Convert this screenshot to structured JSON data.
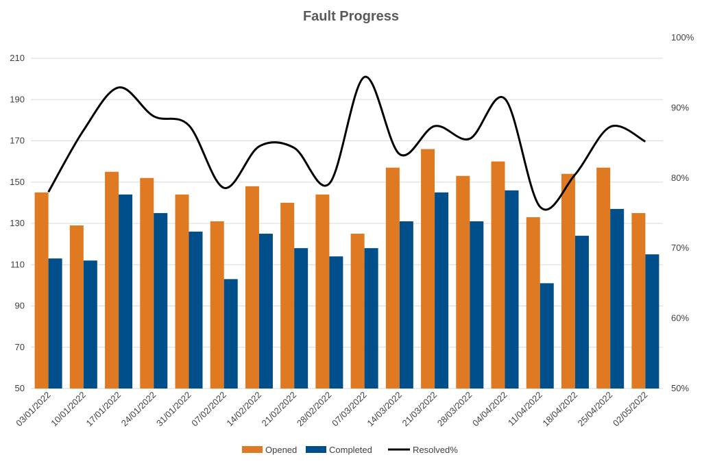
{
  "chart_data": {
    "type": "bar",
    "title": "Fault Progress",
    "categories": [
      "03/01/2022",
      "10/01/2022",
      "17/01/2022",
      "24/01/2022",
      "31/01/2022",
      "07/02/2022",
      "14/02/2022",
      "21/02/2022",
      "28/02/2022",
      "07/03/2022",
      "14/03/2022",
      "21/03/2022",
      "28/03/2022",
      "04/04/2022",
      "11/04/2022",
      "18/04/2022",
      "25/04/2022",
      "02/05/2022"
    ],
    "series": [
      {
        "name": "Opened",
        "type": "bar",
        "axis": "left",
        "color": "#e07a22",
        "values": [
          145,
          129,
          155,
          152,
          144,
          131,
          148,
          140,
          144,
          125,
          157,
          166,
          153,
          160,
          133,
          154,
          157,
          135
        ]
      },
      {
        "name": "Completed",
        "type": "bar",
        "axis": "left",
        "color": "#004f8a",
        "values": [
          113,
          112,
          144,
          135,
          126,
          103,
          125,
          118,
          114,
          118,
          131,
          145,
          131,
          146,
          101,
          124,
          137,
          115
        ]
      },
      {
        "name": "Resolved%",
        "type": "line",
        "axis": "right",
        "color": "#000000",
        "values": [
          0.78,
          0.868,
          0.929,
          0.888,
          0.875,
          0.786,
          0.845,
          0.843,
          0.792,
          0.944,
          0.834,
          0.874,
          0.856,
          0.913,
          0.759,
          0.805,
          0.873,
          0.852
        ]
      }
    ],
    "y_left": {
      "min": 50,
      "max": 210,
      "ticks": [
        50,
        70,
        90,
        110,
        130,
        150,
        170,
        190,
        210
      ]
    },
    "y_right": {
      "min": 0.5,
      "max": 1.0,
      "ticks": [
        "50%",
        "60%",
        "70%",
        "80%",
        "90%",
        "100%"
      ]
    },
    "legend": {
      "position": "bottom",
      "entries": [
        "Opened",
        "Completed",
        "Resolved%"
      ]
    },
    "grid": true
  }
}
